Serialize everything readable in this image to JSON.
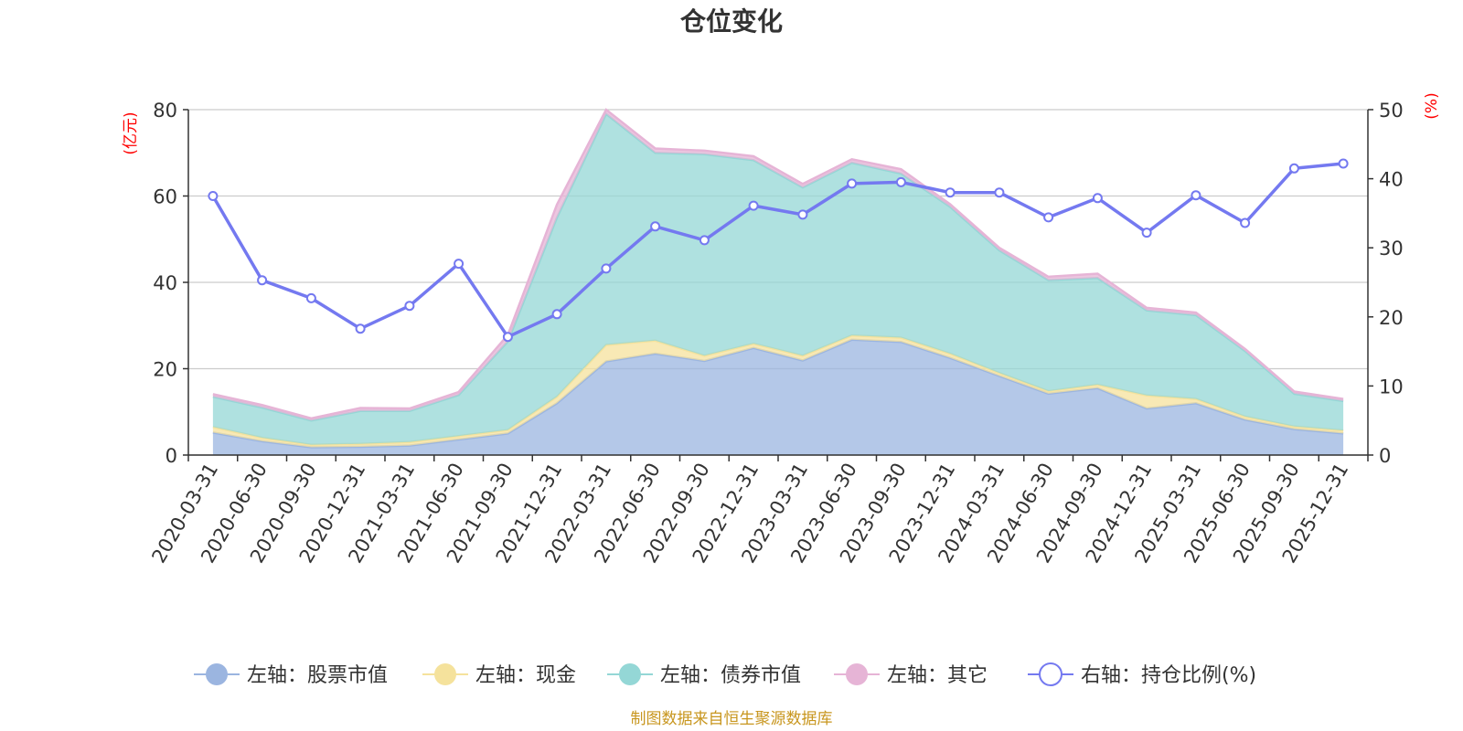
{
  "chart_data": {
    "type": "area",
    "title": "仓位变化",
    "source_note": "制图数据来自恒生聚源数据库",
    "left_axis": {
      "label": "(亿元)",
      "ylim": [
        0,
        80
      ],
      "ticks": [
        0,
        20,
        40,
        60,
        80
      ]
    },
    "right_axis": {
      "label": "(%)",
      "ylim": [
        0,
        50
      ],
      "ticks": [
        0,
        10,
        20,
        30,
        40,
        50
      ]
    },
    "categories": [
      "2020-03-31",
      "2020-06-30",
      "2020-09-30",
      "2020-12-31",
      "2021-03-31",
      "2021-06-30",
      "2021-09-30",
      "2021-12-31",
      "2022-03-31",
      "2022-06-30",
      "2022-09-30",
      "2022-12-31",
      "2023-03-31",
      "2023-06-30",
      "2023-09-30",
      "2023-12-31",
      "2024-03-31",
      "2024-06-30",
      "2024-09-30",
      "2024-12-31",
      "2025-03-31",
      "2025-06-30",
      "2025-09-30",
      "2025-12-31"
    ],
    "series": [
      {
        "name": "左轴：股票市值",
        "axis": "left",
        "kind": "stacked-area",
        "color": "#9bb5e0",
        "values": [
          5.2,
          3.2,
          1.8,
          1.9,
          2.2,
          3.6,
          5.0,
          12.0,
          21.7,
          23.5,
          21.8,
          24.8,
          21.9,
          26.7,
          26.2,
          22.5,
          18.3,
          14.2,
          15.5,
          10.8,
          12.0,
          8.2,
          6.0,
          5.0
        ]
      },
      {
        "name": "左轴：现金",
        "axis": "left",
        "kind": "stacked-area",
        "color": "#f5e29c",
        "values": [
          1.3,
          0.8,
          0.6,
          0.7,
          0.8,
          0.8,
          0.8,
          1.5,
          3.8,
          3.0,
          1.2,
          1.0,
          1.1,
          1.0,
          1.0,
          1.0,
          0.7,
          0.6,
          0.8,
          3.0,
          1.0,
          0.7,
          0.6,
          0.7
        ]
      },
      {
        "name": "左轴：债券市值",
        "axis": "left",
        "kind": "stacked-area",
        "color": "#94d7d6",
        "values": [
          7.0,
          7.0,
          5.6,
          7.6,
          7.2,
          9.5,
          20.5,
          41.5,
          53.5,
          43.5,
          46.7,
          42.5,
          39.0,
          40.0,
          38.0,
          34.0,
          28.4,
          25.7,
          24.7,
          19.7,
          19.4,
          15.2,
          7.6,
          6.8
        ]
      },
      {
        "name": "左轴：其它",
        "axis": "left",
        "kind": "stacked-area",
        "color": "#e6b4d6",
        "values": [
          0.6,
          0.6,
          0.5,
          0.7,
          0.6,
          0.7,
          1.5,
          3.0,
          1.0,
          1.0,
          0.8,
          0.9,
          0.8,
          0.8,
          1.0,
          0.6,
          0.6,
          0.8,
          1.0,
          0.6,
          0.6,
          0.5,
          0.5,
          0.5
        ]
      },
      {
        "name": "右轴：持仓比例(%)",
        "axis": "right",
        "kind": "line",
        "color": "#7479f0",
        "values": [
          37.5,
          25.3,
          22.7,
          18.3,
          21.6,
          27.7,
          17.1,
          20.4,
          27.0,
          33.1,
          31.1,
          36.1,
          34.8,
          39.3,
          39.5,
          38.0,
          38.0,
          34.4,
          37.2,
          32.2,
          37.6,
          33.6,
          41.5,
          42.2
        ]
      }
    ],
    "grid": true,
    "legend_position": "bottom"
  },
  "colors": {
    "title": "#333333",
    "axis_label": "#ff0000",
    "source": "#c8961e",
    "tick": "#333333",
    "grid": "#cccccc"
  }
}
